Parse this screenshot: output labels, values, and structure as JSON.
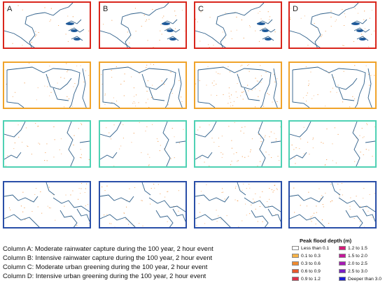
{
  "columns": [
    "A",
    "B",
    "C",
    "D"
  ],
  "row_colors": [
    "#d9261c",
    "#f0a32a",
    "#4fd1b4",
    "#2a4fa8"
  ],
  "captions": [
    "Column A: Moderate rainwater capture during the 100 year, 2 hour event",
    "Column B: Intensive rainwater capture during the 100 year, 2 hour event",
    "Column C: Moderate urban greening during the 100 year, 2 hour event",
    "Column D: Intensive urban greening during the 100 year, 2 hour event"
  ],
  "legend": {
    "title": "Peak flood depth (m)",
    "items": [
      {
        "label": "Less than 0.1",
        "color": "#ffffff"
      },
      {
        "label": "0.1 to 0.3",
        "color": "#f7b347"
      },
      {
        "label": "0.3 to 0.6",
        "color": "#f08a2e"
      },
      {
        "label": "0.6 to 0.9",
        "color": "#e8582c"
      },
      {
        "label": "0.9 to 1.2",
        "color": "#e0304a"
      },
      {
        "label": "1.2 to 1.5",
        "color": "#d41a78"
      },
      {
        "label": "1.5 to 2.0",
        "color": "#c4189a"
      },
      {
        "label": "2.0 to 2.5",
        "color": "#a61ab4"
      },
      {
        "label": "2.5 to 3.0",
        "color": "#7a1ec4"
      },
      {
        "label": "Deeper than 3.0",
        "color": "#1a1ed8"
      }
    ]
  },
  "map_colors": {
    "boundary": "#2e5f8a",
    "water": "#1f5a9a",
    "flood": "#f08a2e"
  }
}
